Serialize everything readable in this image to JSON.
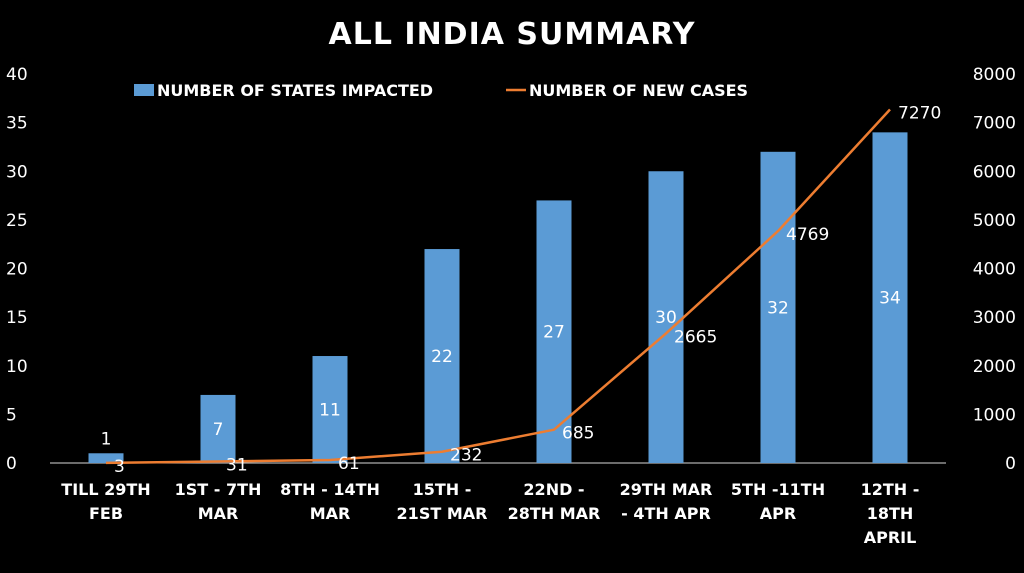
{
  "chart_data": {
    "type": "bar",
    "title": "ALL INDIA SUMMARY",
    "categories": [
      [
        "TILL 29TH",
        "FEB"
      ],
      [
        "1ST - 7TH",
        "MAR"
      ],
      [
        "8TH - 14TH",
        "MAR"
      ],
      [
        "15TH -",
        "21ST MAR"
      ],
      [
        "22ND -",
        "28TH MAR"
      ],
      [
        "29TH MAR",
        "- 4TH APR"
      ],
      [
        "5TH -11TH",
        "APR"
      ],
      [
        "12TH -",
        "18TH",
        "APRIL"
      ]
    ],
    "series": [
      {
        "name": "NUMBER OF STATES IMPACTED",
        "type": "bar",
        "axis": "left",
        "color": "#5B9BD5",
        "values": [
          1,
          7,
          11,
          22,
          27,
          30,
          32,
          34
        ],
        "labels": [
          "1",
          "7",
          "11",
          "22",
          "27",
          "30",
          "32",
          "34"
        ]
      },
      {
        "name": "NUMBER OF NEW CASES",
        "type": "line",
        "axis": "right",
        "color": "#ED7D31",
        "values": [
          3,
          31,
          61,
          232,
          685,
          2665,
          4769,
          7270
        ],
        "labels": [
          "3",
          "31",
          "61",
          "232",
          "685",
          "2665",
          "4769",
          "7270"
        ]
      }
    ],
    "left_axis": {
      "min": 0,
      "max": 40,
      "step": 5,
      "ticks": [
        "0",
        "5",
        "10",
        "15",
        "20",
        "25",
        "30",
        "35",
        "40"
      ]
    },
    "right_axis": {
      "min": 0,
      "max": 8000,
      "step": 1000,
      "ticks": [
        "0",
        "1000",
        "2000",
        "3000",
        "4000",
        "5000",
        "6000",
        "7000",
        "8000"
      ]
    },
    "legend_position": "top"
  }
}
